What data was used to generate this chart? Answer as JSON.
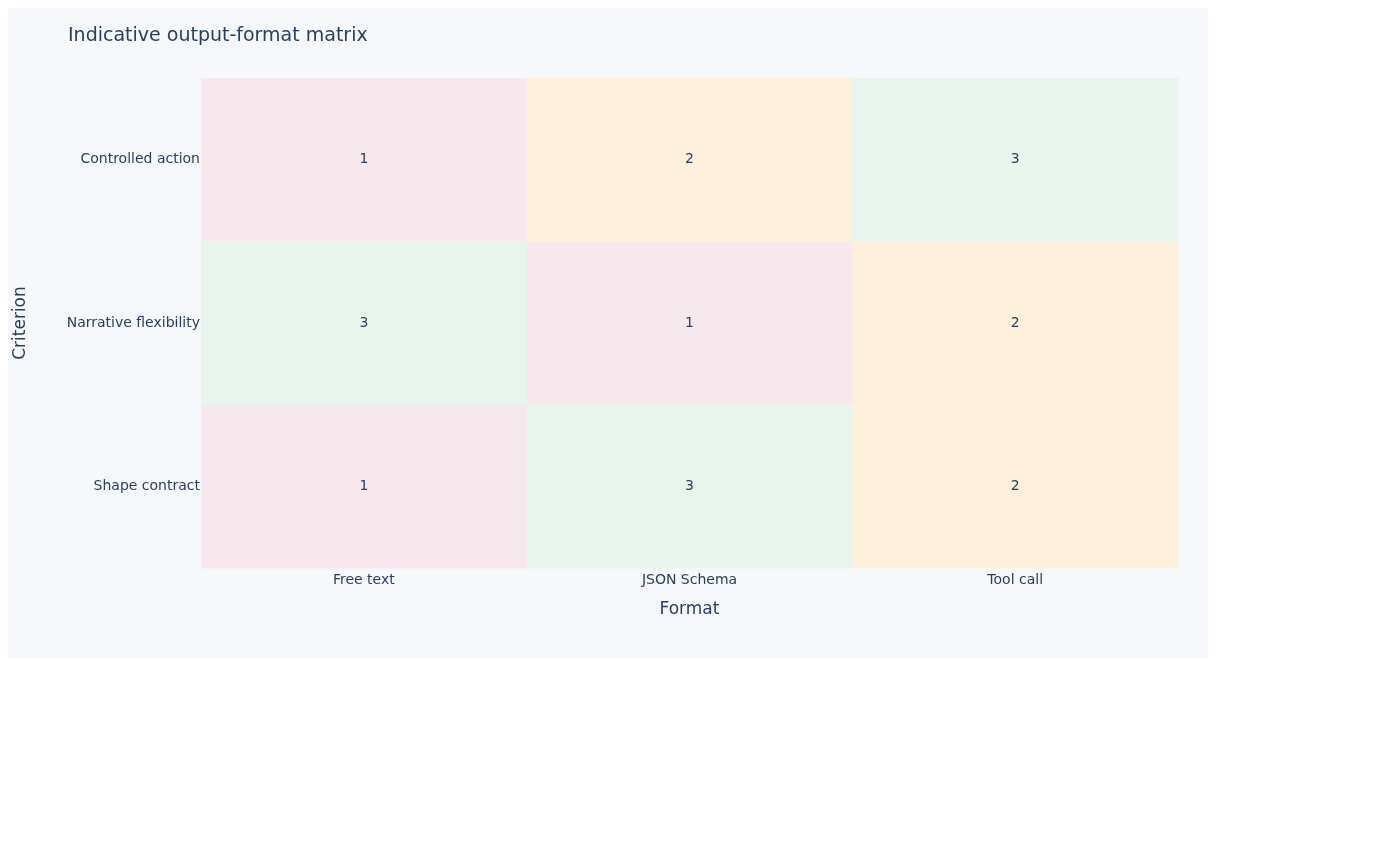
{
  "chart_data": {
    "type": "heatmap",
    "title": "Indicative output-format matrix",
    "xlabel": "Format",
    "ylabel": "Criterion",
    "categories": [
      "Free text",
      "JSON Schema",
      "Tool call"
    ],
    "y_categories": [
      "Controlled action",
      "Narrative flexibility",
      "Shape contract"
    ],
    "cells": [
      [
        1,
        2,
        3
      ],
      [
        3,
        1,
        2
      ],
      [
        1,
        3,
        2
      ]
    ],
    "colors": [
      [
        "#f7e8ee",
        "#fef0dc",
        "#e8f5ec"
      ],
      [
        "#e8f5ec",
        "#f7e8ee",
        "#fef0dc"
      ],
      [
        "#f7e8ee",
        "#e8f5ec",
        "#fef0dc"
      ]
    ],
    "data_labels": true
  }
}
